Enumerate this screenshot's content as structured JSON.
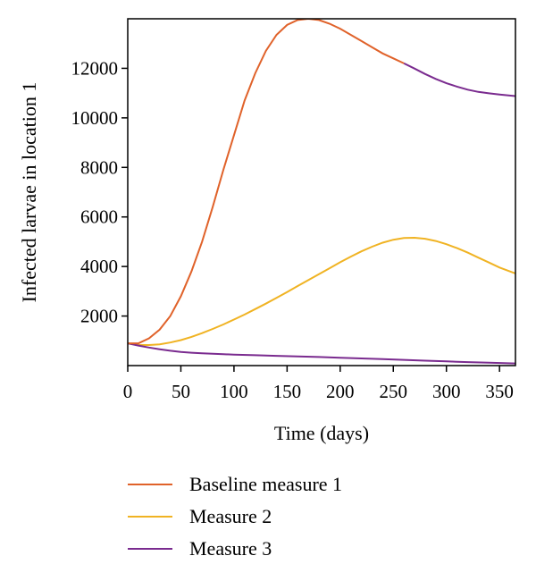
{
  "chart_data": {
    "type": "line",
    "title": "",
    "xlabel": "Time (days)",
    "ylabel": "Infected larvae in location 1",
    "xlim": [
      0,
      365
    ],
    "ylim": [
      0,
      14000
    ],
    "grid": false,
    "legend_position": "bottom",
    "x_ticks": [
      "0",
      "50",
      "100",
      "150",
      "200",
      "250",
      "300",
      "350"
    ],
    "y_ticks": [
      "2000",
      "4000",
      "6000",
      "8000",
      "10000",
      "12000"
    ],
    "series": [
      {
        "name": "Baseline measure 1",
        "color": "#e0622a",
        "x": [
          0,
          10,
          20,
          30,
          40,
          50,
          60,
          70,
          80,
          90,
          100,
          110,
          120,
          130,
          140,
          150,
          160,
          170,
          180,
          190,
          200,
          210,
          220,
          230,
          240,
          250,
          260
        ],
        "y": [
          900,
          900,
          1100,
          1450,
          2000,
          2800,
          3800,
          5000,
          6400,
          7900,
          9300,
          10700,
          11800,
          12700,
          13350,
          13750,
          13950,
          14000,
          13950,
          13800,
          13600,
          13350,
          13100,
          12850,
          12600,
          12400,
          12200
        ]
      },
      {
        "name": "Measure 2",
        "color": "#f0b323",
        "x": [
          0,
          10,
          20,
          30,
          40,
          50,
          60,
          70,
          80,
          90,
          100,
          110,
          120,
          130,
          140,
          150,
          160,
          170,
          180,
          190,
          200,
          210,
          220,
          230,
          240,
          250,
          260,
          270,
          280,
          290,
          300,
          310,
          320,
          330,
          340,
          350,
          365
        ],
        "y": [
          900,
          830,
          830,
          860,
          930,
          1030,
          1160,
          1310,
          1480,
          1660,
          1860,
          2060,
          2280,
          2500,
          2730,
          2970,
          3210,
          3450,
          3690,
          3930,
          4170,
          4400,
          4610,
          4800,
          4960,
          5080,
          5150,
          5160,
          5120,
          5030,
          4900,
          4740,
          4560,
          4360,
          4160,
          3960,
          3720
        ]
      },
      {
        "name": "Measure 3",
        "color": "#7a2b8f",
        "x": [
          0,
          10,
          20,
          30,
          40,
          50,
          60,
          70,
          80,
          90,
          100,
          120,
          140,
          160,
          180,
          200,
          220,
          240,
          260,
          280,
          300,
          320,
          340,
          365
        ],
        "y": [
          900,
          810,
          730,
          660,
          600,
          550,
          520,
          495,
          475,
          460,
          445,
          420,
          395,
          370,
          345,
          315,
          290,
          260,
          230,
          200,
          170,
          140,
          115,
          85
        ],
        "extra_segment": {
          "x": [
            260,
            270,
            280,
            290,
            300,
            310,
            320,
            330,
            340,
            350,
            365
          ],
          "y": [
            12200,
            11990,
            11770,
            11570,
            11400,
            11260,
            11140,
            11050,
            10990,
            10940,
            10880
          ]
        }
      }
    ]
  }
}
